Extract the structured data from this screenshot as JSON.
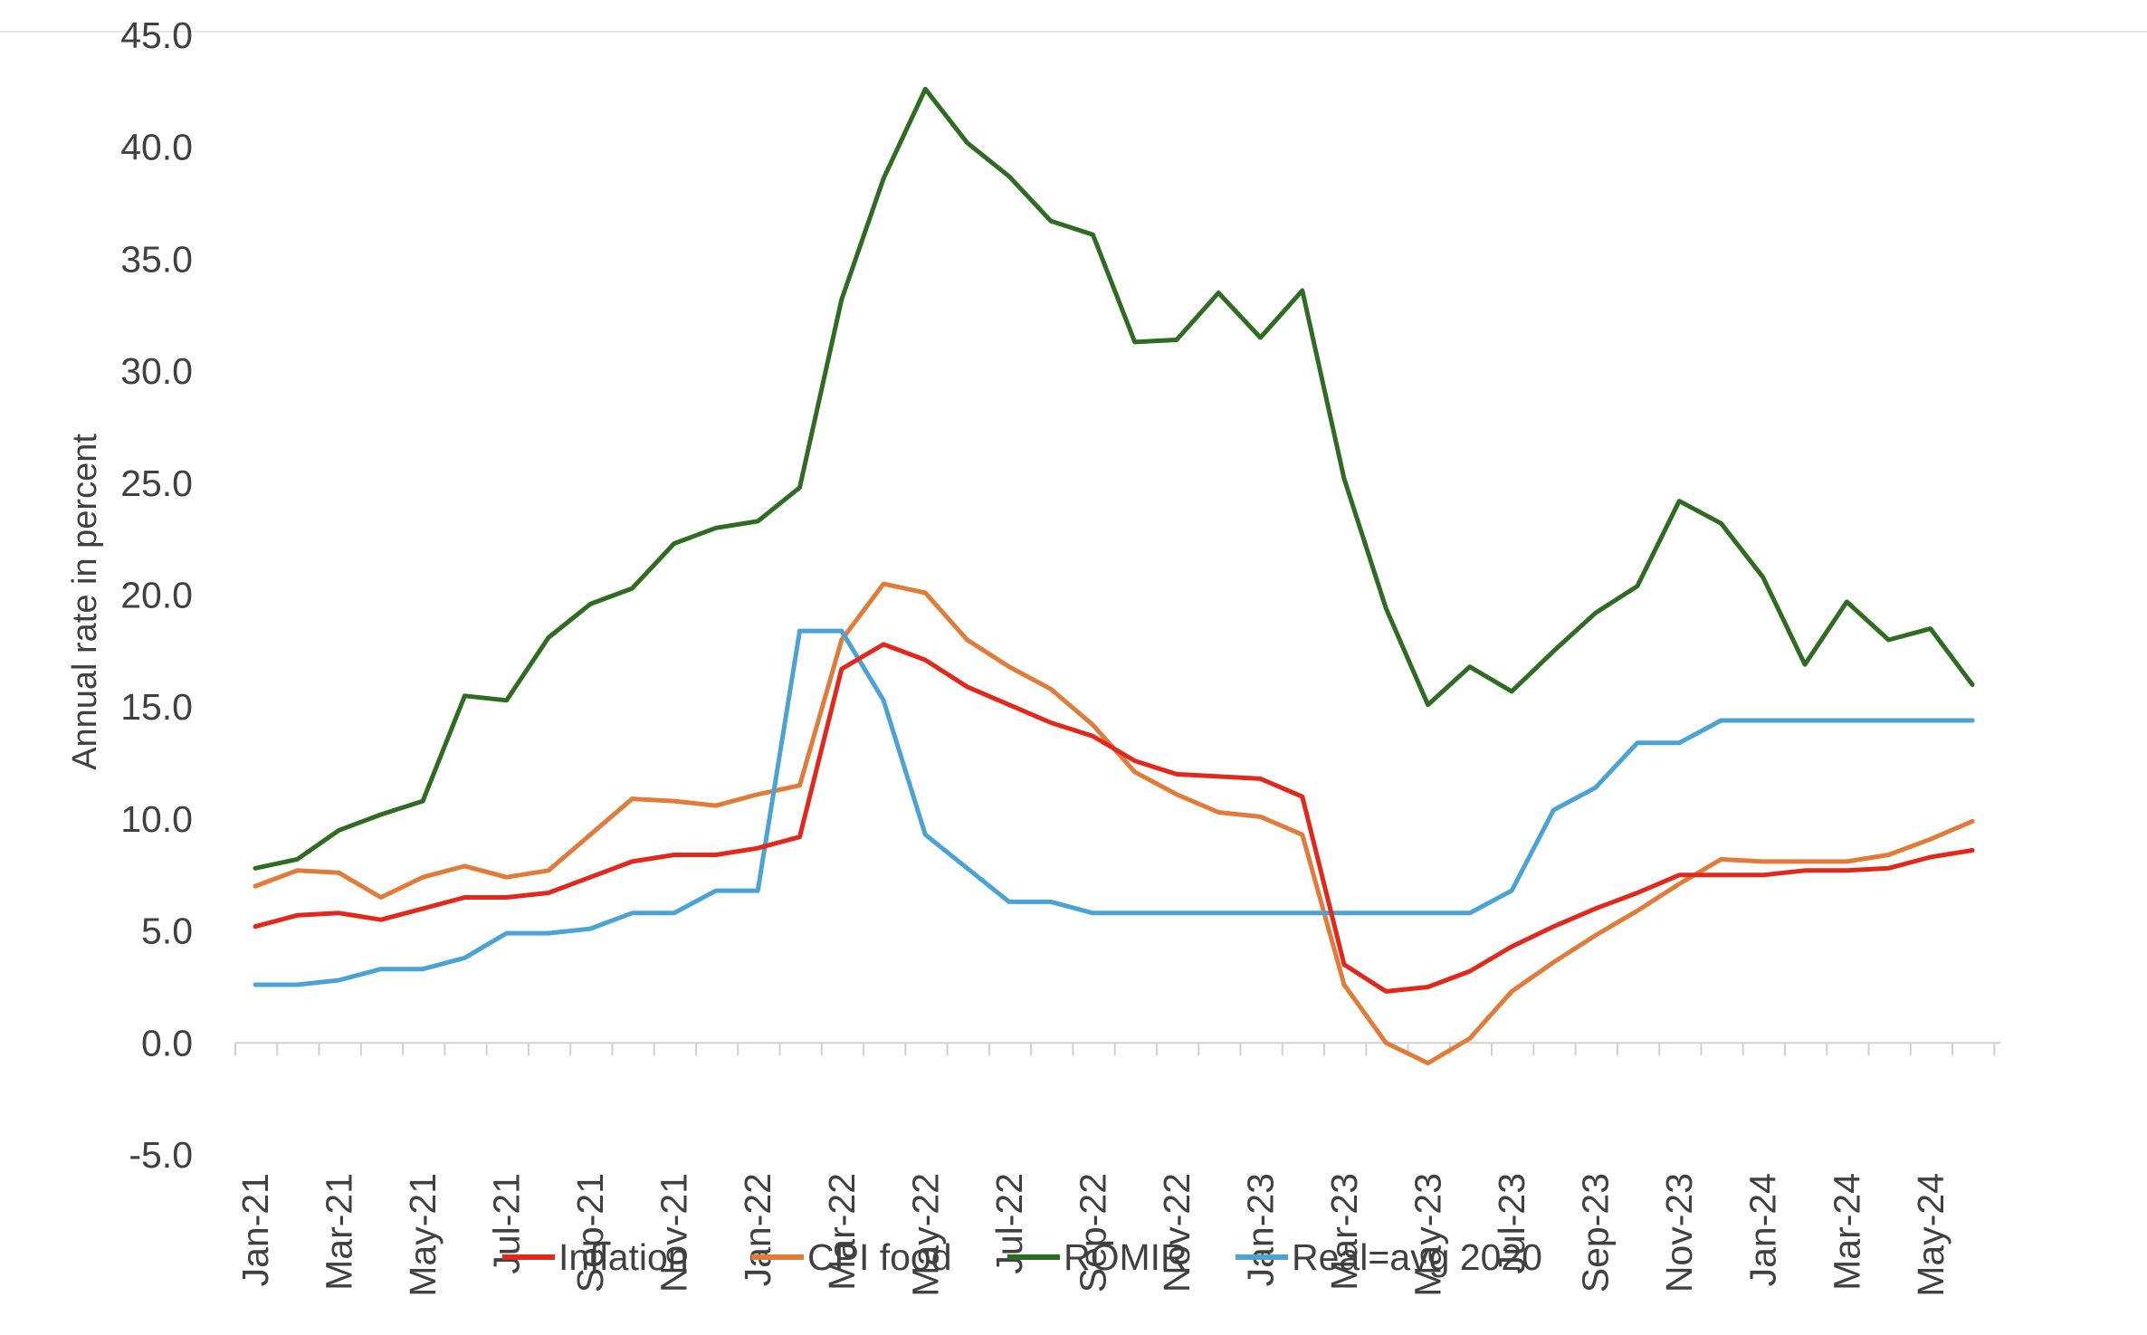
{
  "chart_data": {
    "type": "line",
    "title": "",
    "xlabel": "",
    "ylabel": "Annual rate in percent",
    "ylim": [
      -5,
      45
    ],
    "yticks": [
      "45.0",
      "40.0",
      "35.0",
      "30.0",
      "25.0",
      "20.0",
      "15.0",
      "10.0",
      "5.0",
      "0.0",
      "-5.0"
    ],
    "ytick_values": [
      45,
      40,
      35,
      30,
      25,
      20,
      15,
      10,
      5,
      0,
      -5
    ],
    "x": [
      "Jan-21",
      "Feb-21",
      "Mar-21",
      "Apr-21",
      "May-21",
      "Jun-21",
      "Jul-21",
      "Aug-21",
      "Sep-21",
      "Oct-21",
      "Nov-21",
      "Dec-21",
      "Jan-22",
      "Feb-22",
      "Mar-22",
      "Apr-22",
      "May-22",
      "Jun-22",
      "Jul-22",
      "Aug-22",
      "Sep-22",
      "Oct-22",
      "Nov-22",
      "Dec-22",
      "Jan-23",
      "Feb-23",
      "Mar-23",
      "Apr-23",
      "May-23",
      "Jun-23",
      "Jul-23",
      "Aug-23",
      "Sep-23",
      "Oct-23",
      "Nov-23",
      "Dec-23",
      "Jan-24",
      "Feb-24",
      "Mar-24",
      "Apr-24",
      "May-24",
      "Jun-24"
    ],
    "xtick_labels": [
      "Jan-21",
      "Mar-21",
      "May-21",
      "Jul-21",
      "Sep-21",
      "Nov-21",
      "Jan-22",
      "Mar-22",
      "May-22",
      "Jul-22",
      "Sep-22",
      "Nov-22",
      "Jan-23",
      "Mar-23",
      "May-23",
      "Jul-23",
      "Sep-23",
      "Nov-23",
      "Jan-24",
      "Mar-24",
      "May-24"
    ],
    "grid": false,
    "legend_position": "bottom",
    "series": [
      {
        "name": "Inflation",
        "color": "#e2281b",
        "values": [
          5.2,
          5.7,
          5.8,
          5.5,
          6.0,
          6.5,
          6.5,
          6.7,
          7.4,
          8.1,
          8.4,
          8.4,
          8.7,
          9.2,
          16.7,
          17.8,
          17.1,
          15.9,
          15.1,
          14.3,
          13.7,
          12.6,
          12.0,
          11.9,
          11.8,
          11.0,
          3.5,
          2.3,
          2.5,
          3.2,
          4.3,
          5.2,
          6.0,
          6.7,
          7.5,
          7.5,
          7.5,
          7.7,
          7.7,
          7.8,
          8.3,
          8.6
        ]
      },
      {
        "name": "CPI food",
        "color": "#e07b39",
        "values": [
          7.0,
          7.7,
          7.6,
          6.5,
          7.4,
          7.9,
          7.4,
          7.7,
          9.3,
          10.9,
          10.8,
          10.6,
          11.1,
          11.5,
          18.0,
          20.5,
          20.1,
          18.0,
          16.8,
          15.8,
          14.2,
          12.1,
          11.1,
          10.3,
          10.1,
          9.3,
          2.6,
          0.0,
          -0.9,
          0.2,
          2.3,
          3.6,
          4.8,
          5.9,
          7.1,
          8.2,
          8.1,
          8.1,
          8.1,
          8.4,
          9.1,
          9.9
        ]
      },
      {
        "name": "ROMIR",
        "color": "#2f6b22",
        "values": [
          7.8,
          8.2,
          9.5,
          10.2,
          10.8,
          15.5,
          15.3,
          18.1,
          19.6,
          20.3,
          22.3,
          23.0,
          23.3,
          24.8,
          33.2,
          38.6,
          42.6,
          40.2,
          38.7,
          36.7,
          36.1,
          31.3,
          31.4,
          33.5,
          31.5,
          33.6,
          25.2,
          19.4,
          15.1,
          16.8,
          15.7,
          17.5,
          19.2,
          20.4,
          24.2,
          23.2,
          20.8,
          16.9,
          19.7,
          18.0,
          18.5,
          16.0
        ]
      },
      {
        "name": "Real=avg 2020",
        "color": "#4ba3d3",
        "values": [
          2.6,
          2.6,
          2.8,
          3.3,
          3.3,
          3.8,
          4.9,
          4.9,
          5.1,
          5.8,
          5.8,
          6.8,
          6.8,
          18.4,
          18.4,
          15.3,
          9.3,
          7.8,
          6.3,
          6.3,
          5.8,
          5.8,
          5.8,
          5.8,
          5.8,
          5.8,
          5.8,
          5.8,
          5.8,
          5.8,
          6.8,
          10.4,
          11.4,
          13.4,
          13.4,
          14.4,
          14.4,
          14.4,
          14.4,
          14.4,
          14.4,
          14.4
        ]
      }
    ]
  }
}
